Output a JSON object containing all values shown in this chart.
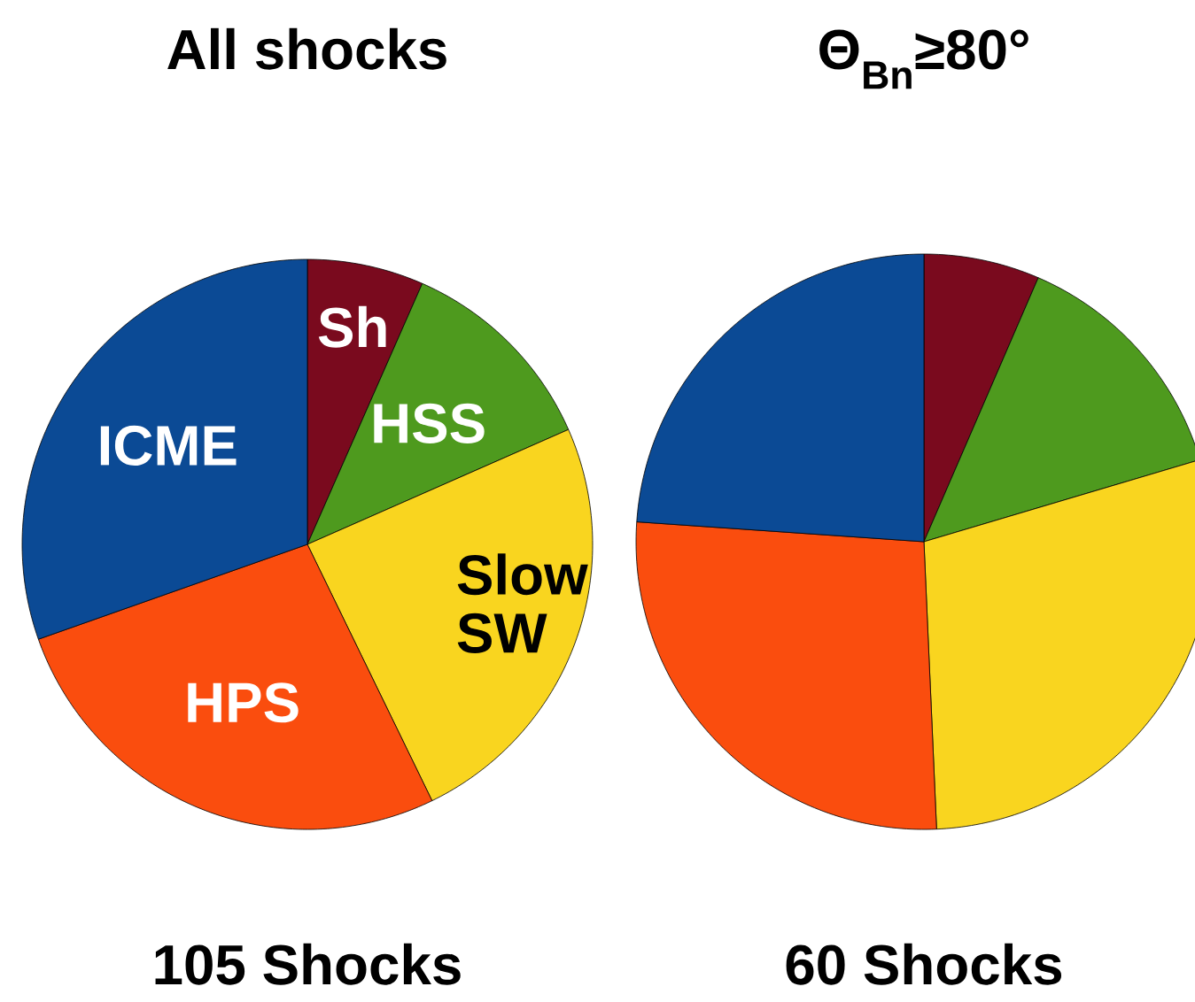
{
  "chart_data": [
    {
      "type": "pie",
      "title": "All shocks",
      "categories": [
        "Sh",
        "HSS",
        "Slow SW",
        "HPS",
        "ICME"
      ],
      "values": [
        6.6,
        11.8,
        24.4,
        26.8,
        30.4
      ],
      "colors": [
        "#7a0a1e",
        "#4e9a1e",
        "#f9d51f",
        "#fa4d0e",
        "#0b4a95"
      ],
      "annotations": [
        "105 Shocks"
      ]
    },
    {
      "type": "pie",
      "title": "Θ$_{Bn}$≥80°",
      "categories": [
        null,
        null,
        null,
        null,
        null
      ],
      "values": [
        6.5,
        13.9,
        28.9,
        26.8,
        23.9
      ],
      "colors": [
        "#7a0a1e",
        "#4e9a1e",
        "#f9d51f",
        "#fa4d0e",
        "#0b4a95"
      ],
      "annotations": [
        "60 Shocks"
      ]
    }
  ]
}
